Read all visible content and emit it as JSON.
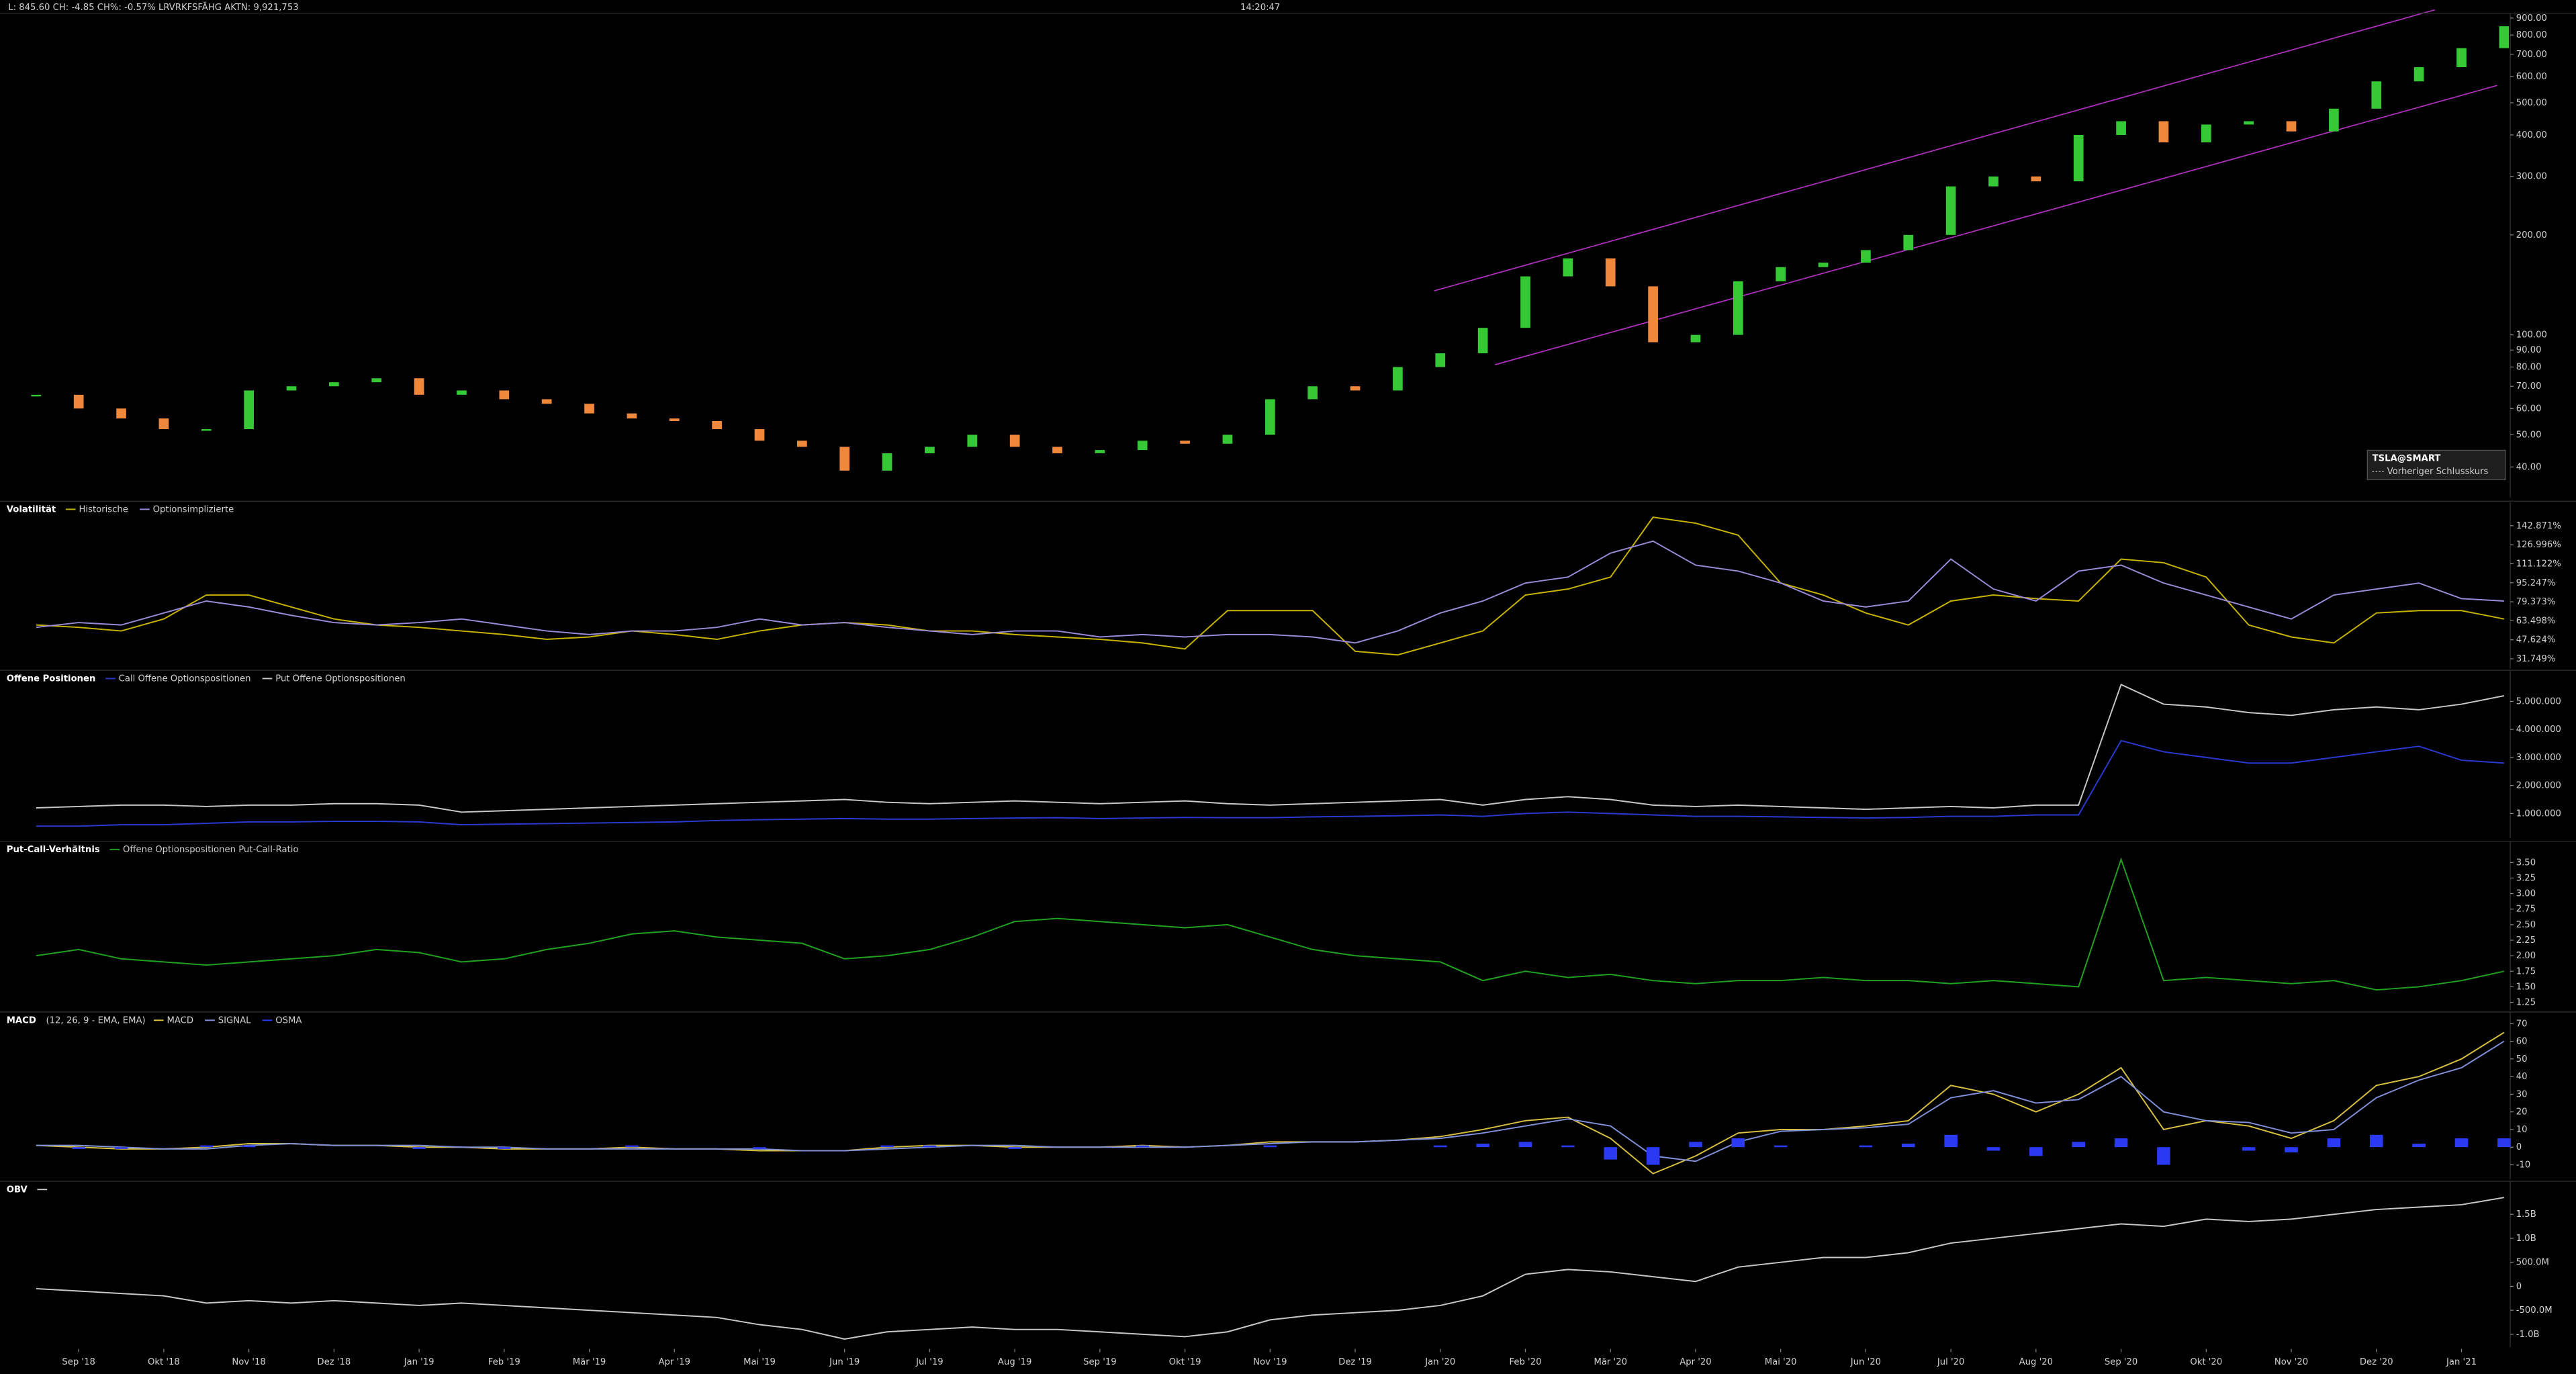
{
  "header": {
    "quote": "L: 845.60 CH: -4.85 CH%: -0.57% LRVRKFSFÄHG AKTN: 9,921,753",
    "time": "14:20:47"
  },
  "chart_data": [
    {
      "type": "candlestick",
      "log_scale": true,
      "legend_note": "Vorheriger Schlusskurs",
      "series": [
        {
          "name": "TSLA@SMART",
          "color_up": "#35c935",
          "color_down": "#f0883c",
          "values": [
            66,
            60,
            56,
            52,
            52,
            68,
            70,
            72,
            74,
            66,
            68,
            64,
            62,
            58,
            56,
            55,
            52,
            48,
            46,
            39,
            44,
            46,
            50,
            46,
            44,
            45,
            48,
            47,
            50,
            64,
            70,
            68,
            80,
            88,
            105,
            150,
            170,
            140,
            95,
            100,
            145,
            160,
            165,
            180,
            200,
            280,
            300,
            290,
            400,
            440,
            380,
            430,
            440,
            410,
            480,
            580,
            640,
            730,
            850
          ]
        }
      ],
      "ylim": [
        32.3,
        910
      ],
      "yticks": [
        {
          "value": 900,
          "label": "900.00"
        },
        {
          "value": 800,
          "label": "800.00"
        },
        {
          "value": 700,
          "label": "700.00"
        },
        {
          "value": 600,
          "label": "600.00"
        },
        {
          "value": 500,
          "label": "500.00"
        },
        {
          "value": 400,
          "label": "400.00"
        },
        {
          "value": 300,
          "label": "300.00"
        },
        {
          "value": 200,
          "label": "200.00"
        },
        {
          "value": 100,
          "label": "100.00"
        },
        {
          "value": 90,
          "label": "90.00"
        },
        {
          "value": 80,
          "label": "80.00"
        },
        {
          "value": 70,
          "label": "70.00"
        },
        {
          "value": 60,
          "label": "60.00"
        },
        {
          "value": 50,
          "label": "50.00"
        },
        {
          "value": 40,
          "label": "40.00"
        }
      ]
    },
    {
      "type": "line",
      "title": "Volatilität",
      "series": [
        {
          "name": "Historische",
          "color": "#c8b400",
          "values": [
            60,
            58,
            55,
            65,
            85,
            85,
            75,
            65,
            60,
            58,
            55,
            52,
            48,
            50,
            55,
            52,
            48,
            55,
            60,
            62,
            60,
            55,
            55,
            52,
            50,
            48,
            45,
            40,
            72,
            72,
            72,
            38,
            35,
            45,
            55,
            85,
            90,
            100,
            150,
            145,
            135,
            95,
            85,
            70,
            60,
            80,
            85,
            82,
            80,
            115,
            112,
            100,
            60,
            50,
            45,
            70,
            72,
            72,
            65
          ]
        },
        {
          "name": "Optionsimplizierte",
          "color": "#9a8ad8",
          "values": [
            58,
            62,
            60,
            70,
            80,
            75,
            68,
            62,
            60,
            62,
            65,
            60,
            55,
            52,
            55,
            55,
            58,
            65,
            60,
            62,
            58,
            55,
            52,
            55,
            55,
            50,
            52,
            50,
            52,
            52,
            50,
            45,
            55,
            70,
            80,
            95,
            100,
            120,
            130,
            110,
            105,
            95,
            80,
            75,
            80,
            115,
            90,
            80,
            105,
            110,
            95,
            85,
            75,
            65,
            85,
            90,
            95,
            82,
            80
          ]
        }
      ],
      "ylim": [
        23.5,
        160.7
      ],
      "yticks": [
        {
          "value": 142.871,
          "label": "142.871%"
        },
        {
          "value": 126.996,
          "label": "126.996%"
        },
        {
          "value": 111.122,
          "label": "111.122%"
        },
        {
          "value": 95.247,
          "label": "95.247%"
        },
        {
          "value": 79.373,
          "label": "79.373%"
        },
        {
          "value": 63.498,
          "label": "63.498%"
        },
        {
          "value": 47.624,
          "label": "47.624%"
        },
        {
          "value": 31.749,
          "label": "31.749%"
        }
      ]
    },
    {
      "type": "line",
      "title": "Offene Positionen",
      "series": [
        {
          "name": "Call Offene Optionspositionen",
          "color": "#2a3ad0",
          "values": [
            550000,
            550000,
            600000,
            600000,
            650000,
            700000,
            700000,
            720000,
            720000,
            700000,
            600000,
            620000,
            640000,
            660000,
            680000,
            700000,
            750000,
            780000,
            800000,
            820000,
            800000,
            800000,
            820000,
            840000,
            850000,
            820000,
            840000,
            860000,
            850000,
            850000,
            880000,
            900000,
            920000,
            950000,
            900000,
            1000000,
            1050000,
            1000000,
            950000,
            900000,
            900000,
            880000,
            860000,
            840000,
            860000,
            900000,
            900000,
            950000,
            950000,
            3600000,
            3200000,
            3000000,
            2800000,
            2800000,
            3000000,
            3200000,
            3400000,
            2900000,
            2800000
          ]
        },
        {
          "name": "Put Offene Optionspositionen",
          "color": "#c8c8c8",
          "values": [
            1200000,
            1250000,
            1300000,
            1300000,
            1250000,
            1300000,
            1300000,
            1350000,
            1350000,
            1300000,
            1050000,
            1100000,
            1150000,
            1200000,
            1250000,
            1300000,
            1350000,
            1400000,
            1450000,
            1500000,
            1400000,
            1350000,
            1400000,
            1450000,
            1400000,
            1350000,
            1400000,
            1450000,
            1350000,
            1300000,
            1350000,
            1400000,
            1450000,
            1500000,
            1300000,
            1500000,
            1600000,
            1500000,
            1300000,
            1250000,
            1300000,
            1250000,
            1200000,
            1150000,
            1200000,
            1250000,
            1200000,
            1300000,
            1300000,
            5600000,
            4900000,
            4800000,
            4600000,
            4500000,
            4700000,
            4800000,
            4700000,
            4900000,
            5200000
          ]
        }
      ],
      "ylim": [
        130000,
        5990000
      ],
      "yticks": [
        {
          "value": 5000000,
          "label": "5.000.000"
        },
        {
          "value": 4000000,
          "label": "4.000.000"
        },
        {
          "value": 3000000,
          "label": "3.000.000"
        },
        {
          "value": 2000000,
          "label": "2.000.000"
        },
        {
          "value": 1000000,
          "label": "1.000.000"
        }
      ]
    },
    {
      "type": "line",
      "title": "Put-Call-Verhältnis",
      "series": [
        {
          "name": "Offene Optionspositionen Put-Call-Ratio",
          "color": "#1fa31f",
          "values": [
            2.0,
            2.1,
            1.95,
            1.9,
            1.85,
            1.9,
            1.95,
            2.0,
            2.1,
            2.05,
            1.9,
            1.95,
            2.1,
            2.2,
            2.35,
            2.4,
            2.3,
            2.25,
            2.2,
            1.95,
            2.0,
            2.1,
            2.3,
            2.55,
            2.6,
            2.55,
            2.5,
            2.45,
            2.5,
            2.3,
            2.1,
            2.0,
            1.95,
            1.9,
            1.6,
            1.75,
            1.65,
            1.7,
            1.6,
            1.55,
            1.6,
            1.6,
            1.65,
            1.6,
            1.6,
            1.55,
            1.6,
            1.55,
            1.5,
            3.55,
            1.6,
            1.65,
            1.6,
            1.55,
            1.6,
            1.45,
            1.5,
            1.6,
            1.75
          ]
        }
      ],
      "ylim": [
        1.12,
        3.79
      ],
      "yticks": [
        {
          "value": 3.5,
          "label": "3.50"
        },
        3.25,
        {
          "value": 3,
          "label": "3.00"
        },
        2.75,
        {
          "value": 2.5,
          "label": "2.50"
        },
        2.25,
        {
          "value": 2,
          "label": "2.00"
        },
        1.75,
        {
          "value": 1.5,
          "label": "1.50"
        },
        1.25
      ]
    },
    {
      "type": "line",
      "title": "MACD",
      "subtitle": "(12, 26, 9 - EMA, EMA)",
      "series": [
        {
          "name": "MACD",
          "color": "#d8c040",
          "values": [
            1,
            0,
            -1,
            -1,
            0,
            2,
            2,
            1,
            1,
            0,
            0,
            -1,
            -1,
            -1,
            0,
            -1,
            -1,
            -2,
            -2,
            -2,
            0,
            1,
            1,
            0,
            0,
            0,
            1,
            0,
            1,
            3,
            3,
            3,
            4,
            6,
            10,
            15,
            17,
            5,
            -15,
            -5,
            8,
            10,
            10,
            12,
            15,
            35,
            30,
            20,
            30,
            45,
            10,
            15,
            12,
            5,
            15,
            35,
            40,
            50,
            65
          ]
        },
        {
          "name": "SIGNAL",
          "color": "#8090d8",
          "values": [
            1,
            1,
            0,
            -1,
            -1,
            1,
            2,
            1,
            1,
            1,
            0,
            0,
            -1,
            -1,
            -1,
            -1,
            -1,
            -1,
            -2,
            -2,
            -1,
            0,
            1,
            1,
            0,
            0,
            0,
            0,
            1,
            2,
            3,
            3,
            4,
            5,
            8,
            12,
            16,
            12,
            -5,
            -8,
            3,
            9,
            10,
            11,
            13,
            28,
            32,
            25,
            27,
            40,
            20,
            15,
            14,
            8,
            10,
            28,
            38,
            45,
            60
          ]
        },
        {
          "name": "OSMA",
          "type": "bar",
          "color": "#2a3af0",
          "values": [
            0,
            -1,
            -1,
            0,
            1,
            1,
            0,
            0,
            0,
            -1,
            0,
            -1,
            0,
            0,
            1,
            0,
            0,
            -1,
            0,
            0,
            1,
            1,
            0,
            -1,
            0,
            0,
            1,
            0,
            0,
            1,
            0,
            0,
            0,
            1,
            2,
            3,
            1,
            -7,
            -10,
            3,
            5,
            1,
            0,
            1,
            2,
            7,
            -2,
            -5,
            3,
            5,
            -10,
            0,
            -2,
            -3,
            5,
            7,
            2,
            5,
            5
          ]
        }
      ],
      "ylim": [
        -18.4,
        74.7
      ],
      "yticks": [
        70,
        60,
        50,
        40,
        30,
        20,
        10,
        0,
        -10
      ]
    },
    {
      "type": "line",
      "title": "OBV",
      "categories": [
        null,
        "Sep '18",
        null,
        "Okt '18",
        null,
        "Nov '18",
        null,
        "Dez '18",
        null,
        "Jan '19",
        null,
        "Feb '19",
        null,
        "Mär '19",
        null,
        "Apr '19",
        null,
        "Mai '19",
        null,
        "Jun '19",
        null,
        "Jul '19",
        null,
        "Aug '19",
        null,
        "Sep '19",
        null,
        "Okt '19",
        null,
        "Nov '19",
        null,
        "Dez '19",
        null,
        "Jan '20",
        null,
        "Feb '20",
        null,
        "Mär '20",
        null,
        "Apr '20",
        null,
        "Mai '20",
        null,
        "Jun '20",
        null,
        "Jul '20",
        null,
        "Aug '20",
        null,
        "Sep '20",
        null,
        "Okt '20",
        null,
        "Nov '20",
        null,
        "Dez '20",
        null,
        "Jan '21",
        null
      ],
      "series": [
        {
          "color": "#c8c8c8",
          "values": [
            -50000000,
            -100000000,
            -150000000,
            -200000000,
            -350000000,
            -300000000,
            -350000000,
            -300000000,
            -350000000,
            -400000000,
            -350000000,
            -400000000,
            -450000000,
            -500000000,
            -550000000,
            -600000000,
            -650000000,
            -800000000,
            -900000000,
            -1100000000,
            -950000000,
            -900000000,
            -850000000,
            -900000000,
            -900000000,
            -950000000,
            -1000000000,
            -1050000000,
            -950000000,
            -700000000,
            -600000000,
            -550000000,
            -500000000,
            -400000000,
            -200000000,
            250000000,
            350000000,
            300000000,
            200000000,
            100000000,
            400000000,
            500000000,
            600000000,
            600000000,
            700000000,
            900000000,
            1000000000,
            1100000000,
            1200000000,
            1300000000,
            1250000000,
            1400000000,
            1350000000,
            1400000000,
            1500000000,
            1600000000,
            1650000000,
            1700000000,
            1850000000
          ]
        }
      ],
      "ylim": [
        -1270000000,
        2120000000
      ],
      "yticks": [
        {
          "value": 1500000000,
          "label": "1.5B"
        },
        {
          "value": 1000000000,
          "label": "1.0B"
        },
        {
          "value": 500000000,
          "label": "500.0M"
        },
        0,
        {
          "value": -500000000,
          "label": "-500.0M"
        },
        {
          "value": -1000000000,
          "label": "-1.0B"
        }
      ]
    }
  ]
}
